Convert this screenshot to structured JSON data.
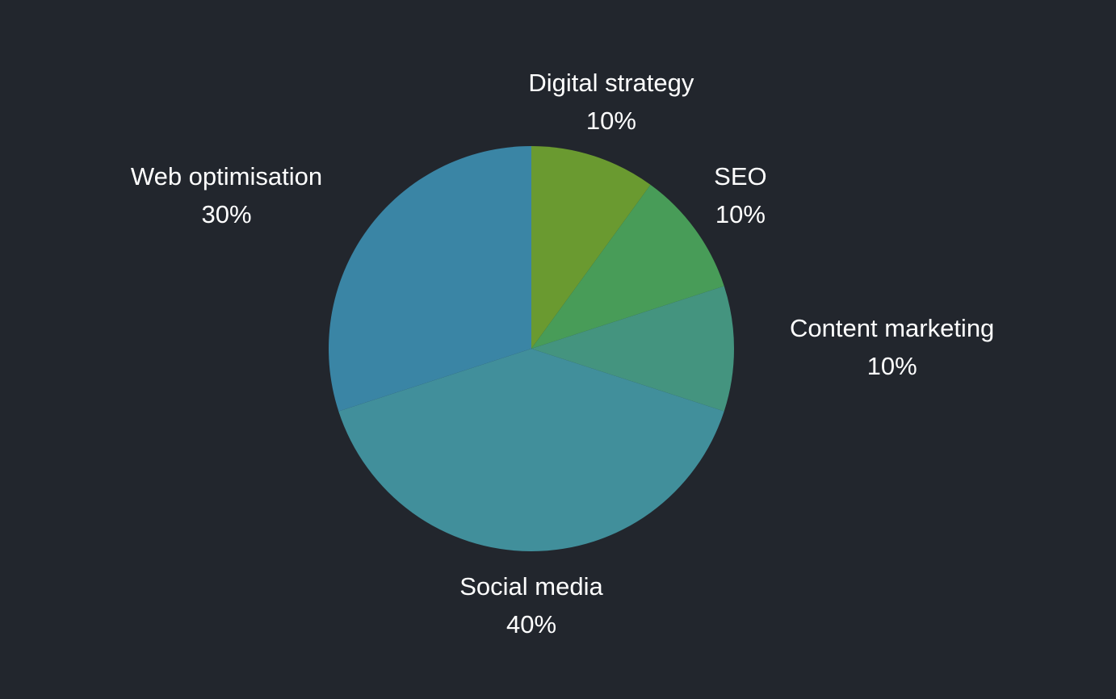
{
  "chart_data": {
    "type": "pie",
    "categories": [
      "Digital strategy",
      "SEO",
      "Content marketing",
      "Social media",
      "Web optimisation"
    ],
    "values": [
      10,
      10,
      10,
      40,
      30
    ],
    "value_labels": [
      "10%",
      "10%",
      "10%",
      "40%",
      "30%"
    ],
    "colors": [
      "#6a9a30",
      "#489c58",
      "#44947f",
      "#418f9b",
      "#3a85a5"
    ]
  }
}
